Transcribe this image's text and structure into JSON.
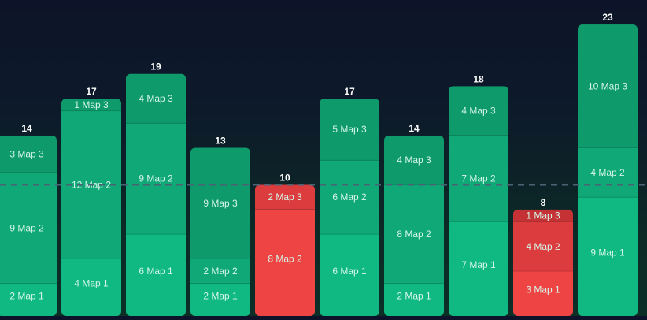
{
  "chart_data": {
    "type": "bar",
    "stacked": true,
    "title": "",
    "xlabel": "",
    "ylabel": "",
    "ylim": [
      0,
      23
    ],
    "grid": false,
    "reference_line": {
      "value": 10,
      "style": "dashed"
    },
    "colors": {
      "good": [
        "#10b981",
        "#0fa876",
        "#0e9a6b"
      ],
      "bad": [
        "#ef4444",
        "#dc3c3e",
        "#c53235"
      ],
      "reference_line": "#4b6473",
      "total_label": "#ffffff",
      "segment_label": "#d5f5e8"
    },
    "bars": [
      {
        "total": 14,
        "status": "good",
        "segments": [
          {
            "value": 2,
            "label": "2 Map 1"
          },
          {
            "value": 9,
            "label": "9 Map 2"
          },
          {
            "value": 3,
            "label": "3 Map 3"
          }
        ]
      },
      {
        "total": 17,
        "status": "good",
        "segments": [
          {
            "value": 4,
            "label": "4 Map 1"
          },
          {
            "value": 12,
            "label": "12 Map 2"
          },
          {
            "value": 1,
            "label": "1 Map 3"
          }
        ]
      },
      {
        "total": 19,
        "status": "good",
        "segments": [
          {
            "value": 6,
            "label": "6 Map 1"
          },
          {
            "value": 9,
            "label": "9 Map 2"
          },
          {
            "value": 4,
            "label": "4 Map 3"
          }
        ]
      },
      {
        "total": 13,
        "status": "good",
        "segments": [
          {
            "value": 2,
            "label": "2 Map 1"
          },
          {
            "value": 2,
            "label": "2 Map 2"
          },
          {
            "value": 9,
            "label": "9 Map 3"
          }
        ]
      },
      {
        "total": 10,
        "status": "bad",
        "segments": [
          {
            "value": 8,
            "label": "8 Map 2"
          },
          {
            "value": 2,
            "label": "2 Map 3"
          }
        ]
      },
      {
        "total": 17,
        "status": "good",
        "segments": [
          {
            "value": 6,
            "label": "6 Map 1"
          },
          {
            "value": 6,
            "label": "6 Map 2"
          },
          {
            "value": 5,
            "label": "5 Map 3"
          }
        ]
      },
      {
        "total": 14,
        "status": "good",
        "segments": [
          {
            "value": 2,
            "label": "2 Map 1"
          },
          {
            "value": 8,
            "label": "8 Map 2"
          },
          {
            "value": 4,
            "label": "4 Map 3"
          }
        ]
      },
      {
        "total": 18,
        "status": "good",
        "segments": [
          {
            "value": 7,
            "label": "7 Map 1"
          },
          {
            "value": 7,
            "label": "7 Map 2"
          },
          {
            "value": 4,
            "label": "4 Map 3"
          }
        ]
      },
      {
        "total": 8,
        "status": "bad",
        "segments": [
          {
            "value": 3,
            "label": "3 Map 1"
          },
          {
            "value": 4,
            "label": "4 Map 2"
          },
          {
            "value": 1,
            "label": "1 Map 3"
          }
        ]
      },
      {
        "total": 23,
        "status": "good",
        "segments": [
          {
            "value": 9,
            "label": "9 Map 1"
          },
          {
            "value": 4,
            "label": "4 Map 2"
          },
          {
            "value": 10,
            "label": "10 Map 3"
          }
        ]
      }
    ]
  }
}
